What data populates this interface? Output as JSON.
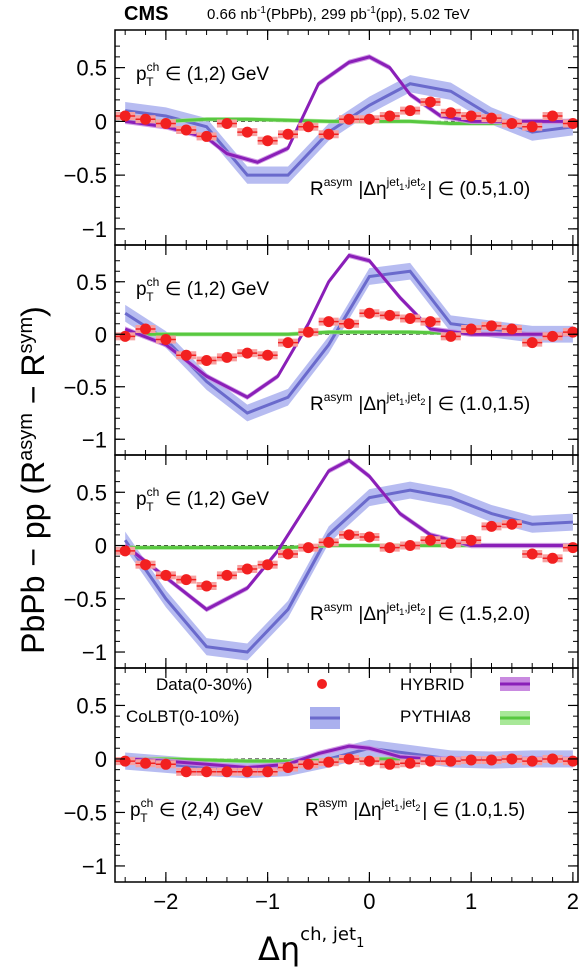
{
  "header": {
    "experiment": "CMS",
    "lumi_pbpb": "0.66 nb",
    "lumi_pbpb_sup": "-1",
    "lumi_pbpb_system": "(PbPb), 299 pb",
    "lumi_pp_sup": "-1",
    "lumi_pp_system": "(pp), 5.02 TeV"
  },
  "axes": {
    "ylabel_main": "PbPb − pp (R",
    "ylabel_asym": "asym",
    "ylabel_minus": " − R",
    "ylabel_sym": "sym",
    "ylabel_close": ")",
    "xlabel_main": "Δη",
    "xlabel_sup": "ch, jet",
    "xlabel_sub": "1"
  },
  "legend": {
    "data": "Data(0-30%)",
    "colbt": "CoLBT(0-10%)",
    "hybrid": "HYBRID",
    "pythia": "PYTHIA8"
  },
  "colors": {
    "data": "#f22020",
    "colbt_line": "#6a6acc",
    "colbt_band": "#aab0ee",
    "hybrid_line": "#8a1fb8",
    "hybrid_band": "#c98ae0",
    "pythia_line": "#58c840",
    "pythia_band": "#a8e898"
  },
  "chart_data": {
    "type": "line",
    "xlim": [
      -2.5,
      2.05
    ],
    "ylim": [
      -1.15,
      0.85
    ],
    "xticks": [
      -2,
      -1,
      0,
      1,
      2
    ],
    "yticks": [
      -1,
      -0.5,
      0,
      0.5
    ],
    "xtick_labels": [
      "−2",
      "−1",
      "0",
      "1",
      "2"
    ],
    "ytick_labels": [
      "−1",
      "−0.5",
      "0",
      "0.5"
    ],
    "data_x": [
      -2.4,
      -2.2,
      -2.0,
      -1.8,
      -1.6,
      -1.4,
      -1.2,
      -1.0,
      -0.8,
      -0.6,
      -0.4,
      -0.2,
      0.0,
      0.2,
      0.4,
      0.6,
      0.8,
      1.0,
      1.2,
      1.4,
      1.6,
      1.8,
      2.0
    ],
    "panels": [
      {
        "pt_label": "∈ (1,2) GeV",
        "region_label": "∈ (0.5,1.0)",
        "data": [
          0.05,
          0.02,
          -0.02,
          -0.08,
          -0.14,
          -0.02,
          -0.1,
          -0.18,
          -0.12,
          -0.05,
          -0.12,
          0.02,
          0.02,
          0.05,
          0.1,
          0.18,
          0.08,
          0.05,
          0.03,
          -0.02,
          -0.05,
          0.05,
          -0.02
        ],
        "colbt": {
          "x": [
            -2.4,
            -2.0,
            -1.6,
            -1.2,
            -0.8,
            -0.4,
            0.0,
            0.4,
            0.8,
            1.2,
            1.6,
            2.0
          ],
          "y": [
            0.1,
            0.05,
            -0.05,
            -0.5,
            -0.5,
            -0.1,
            0.15,
            0.35,
            0.28,
            0.05,
            -0.1,
            -0.05
          ]
        },
        "hybrid": {
          "x": [
            -2.4,
            -2.0,
            -1.6,
            -1.4,
            -1.1,
            -0.8,
            -0.5,
            -0.2,
            0.0,
            0.2,
            0.4,
            0.7,
            1.0,
            1.3,
            1.6,
            2.0
          ],
          "y": [
            0.0,
            -0.05,
            -0.15,
            -0.3,
            -0.38,
            -0.25,
            0.35,
            0.55,
            0.6,
            0.5,
            0.25,
            0.05,
            0.0,
            0.0,
            0.0,
            0.0
          ]
        },
        "pythia": {
          "x": [
            -2.4,
            -2.0,
            -1.6,
            -1.2,
            -0.8,
            -0.4,
            0.0,
            0.4,
            0.8,
            1.2,
            1.6,
            2.0
          ],
          "y": [
            0.0,
            0.0,
            0.02,
            0.02,
            0.01,
            0.0,
            0.0,
            0.0,
            -0.02,
            -0.02,
            0.0,
            0.0
          ]
        }
      },
      {
        "pt_label": "∈ (1,2) GeV",
        "region_label": "∈ (1.0,1.5)",
        "data": [
          -0.02,
          0.05,
          -0.05,
          -0.2,
          -0.25,
          -0.22,
          -0.18,
          -0.2,
          -0.08,
          0.02,
          0.12,
          0.1,
          0.2,
          0.18,
          0.15,
          0.12,
          -0.02,
          0.05,
          0.08,
          0.05,
          -0.08,
          -0.02,
          0.02
        ],
        "colbt": {
          "x": [
            -2.4,
            -2.0,
            -1.6,
            -1.2,
            -0.8,
            -0.4,
            0.0,
            0.4,
            0.8,
            1.2,
            1.6,
            2.0
          ],
          "y": [
            0.2,
            -0.05,
            -0.45,
            -0.75,
            -0.6,
            -0.1,
            0.55,
            0.6,
            0.1,
            0.05,
            0.0,
            0.0
          ]
        },
        "hybrid": {
          "x": [
            -2.4,
            -2.0,
            -1.6,
            -1.2,
            -0.9,
            -0.6,
            -0.4,
            -0.2,
            0.0,
            0.3,
            0.6,
            1.0,
            1.5,
            2.0
          ],
          "y": [
            0.05,
            -0.1,
            -0.4,
            -0.6,
            -0.4,
            0.1,
            0.5,
            0.75,
            0.7,
            0.35,
            0.05,
            0.0,
            0.0,
            0.0
          ]
        },
        "pythia": {
          "x": [
            -2.4,
            -2.0,
            -1.6,
            -1.2,
            -0.8,
            -0.4,
            0.0,
            0.4,
            0.8,
            1.2,
            1.6,
            2.0
          ],
          "y": [
            0.0,
            0.0,
            0.0,
            0.0,
            0.0,
            0.02,
            0.02,
            0.02,
            0.01,
            0.0,
            0.0,
            0.0
          ]
        }
      },
      {
        "pt_label": "∈ (1,2) GeV",
        "region_label": "∈ (1.5,2.0)",
        "data": [
          -0.05,
          -0.18,
          -0.28,
          -0.32,
          -0.38,
          -0.28,
          -0.22,
          -0.18,
          -0.08,
          -0.02,
          0.03,
          0.1,
          0.08,
          -0.02,
          0.0,
          0.05,
          0.02,
          0.05,
          0.18,
          0.2,
          -0.08,
          -0.12,
          -0.02
        ],
        "colbt": {
          "x": [
            -2.4,
            -2.0,
            -1.6,
            -1.2,
            -0.8,
            -0.4,
            0.0,
            0.4,
            0.8,
            1.2,
            1.6,
            2.0
          ],
          "y": [
            0.05,
            -0.5,
            -0.95,
            -1.0,
            -0.6,
            0.1,
            0.45,
            0.52,
            0.45,
            0.3,
            0.2,
            0.22
          ]
        },
        "hybrid": {
          "x": [
            -2.4,
            -2.0,
            -1.6,
            -1.2,
            -0.9,
            -0.6,
            -0.4,
            -0.2,
            0.0,
            0.3,
            0.6,
            1.0,
            1.5,
            2.0
          ],
          "y": [
            0.0,
            -0.3,
            -0.6,
            -0.4,
            -0.05,
            0.4,
            0.7,
            0.8,
            0.65,
            0.3,
            0.1,
            0.0,
            0.0,
            0.0
          ]
        },
        "pythia": {
          "x": [
            -2.4,
            -2.0,
            -1.6,
            -1.2,
            -0.8,
            -0.4,
            0.0,
            0.4,
            0.8,
            1.2,
            1.6,
            2.0
          ],
          "y": [
            -0.02,
            -0.02,
            -0.02,
            -0.02,
            -0.02,
            0.0,
            0.0,
            0.0,
            0.0,
            0.0,
            0.0,
            0.0
          ]
        }
      },
      {
        "pt_label": "∈ (2,4) GeV",
        "region_label": "∈ (1.0,1.5)",
        "data": [
          -0.02,
          -0.04,
          -0.05,
          -0.12,
          -0.12,
          -0.12,
          -0.12,
          -0.12,
          -0.08,
          -0.05,
          -0.03,
          0.0,
          -0.02,
          -0.05,
          -0.04,
          -0.02,
          -0.02,
          -0.01,
          -0.01,
          0.0,
          -0.02,
          0.0,
          -0.02
        ],
        "colbt": {
          "x": [
            -2.4,
            -2.0,
            -1.6,
            -1.2,
            -0.8,
            -0.4,
            0.0,
            0.4,
            0.8,
            1.2,
            1.6,
            2.0
          ],
          "y": [
            -0.02,
            -0.05,
            -0.08,
            -0.1,
            -0.08,
            0.0,
            0.1,
            0.05,
            0.0,
            -0.01,
            0.0,
            0.0
          ]
        },
        "hybrid": {
          "x": [
            -2.4,
            -2.0,
            -1.6,
            -1.2,
            -0.8,
            -0.5,
            -0.2,
            0.0,
            0.3,
            0.6,
            1.0,
            1.5,
            2.0
          ],
          "y": [
            0.0,
            -0.02,
            -0.05,
            -0.08,
            -0.05,
            0.05,
            0.12,
            0.1,
            0.02,
            0.0,
            0.0,
            0.0,
            0.0
          ]
        },
        "pythia": {
          "x": [
            -2.4,
            -2.0,
            -1.6,
            -1.2,
            -0.8,
            -0.4,
            0.0,
            0.4,
            0.8,
            1.2,
            1.6,
            2.0
          ],
          "y": [
            0.0,
            0.0,
            -0.01,
            -0.02,
            -0.02,
            -0.01,
            0.0,
            0.0,
            0.0,
            0.0,
            0.0,
            0.0
          ]
        }
      }
    ]
  }
}
